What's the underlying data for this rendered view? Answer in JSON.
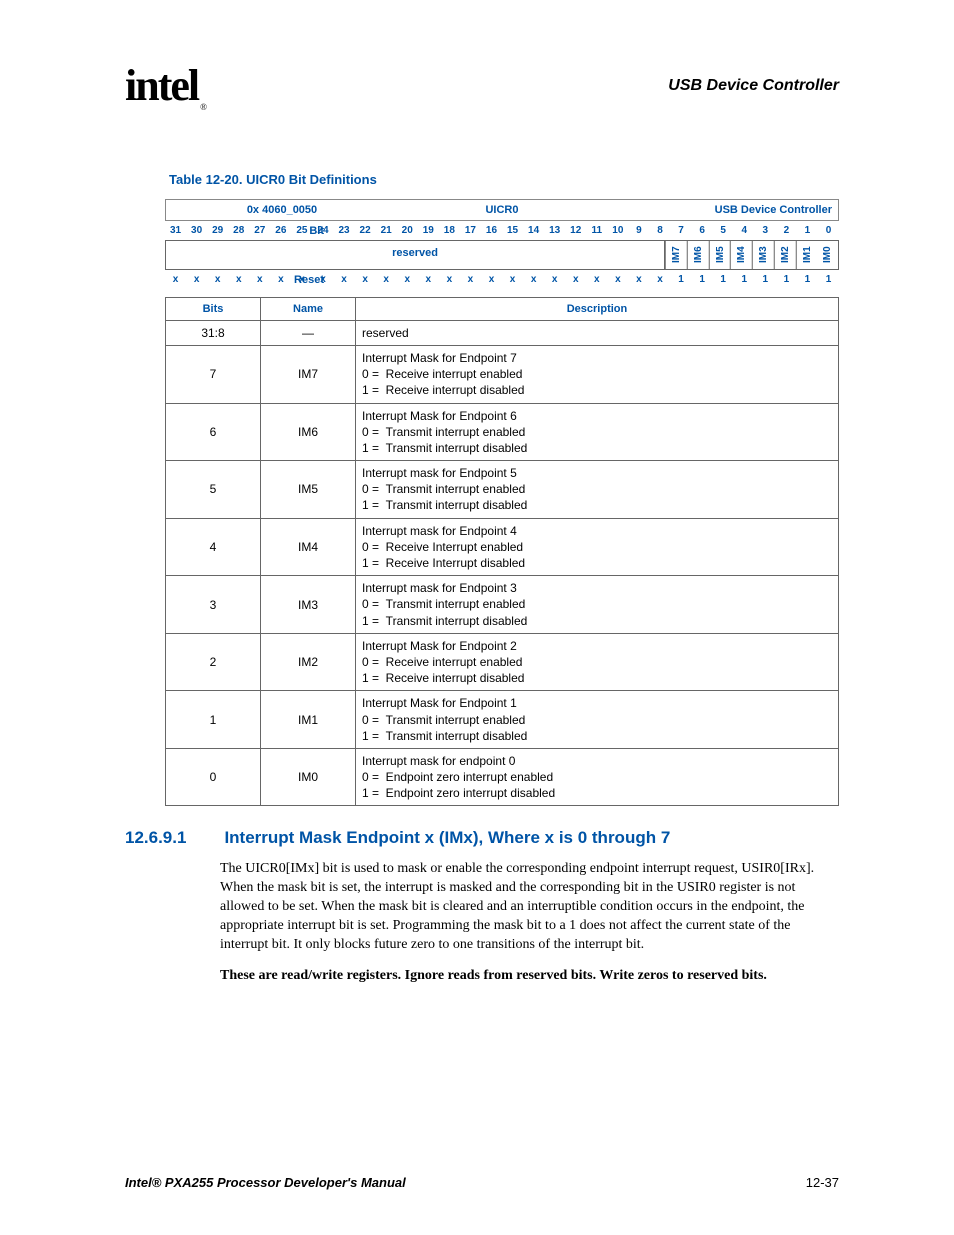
{
  "header": {
    "logo_text": "intel",
    "chapter": "USB Device Controller"
  },
  "table_caption": "Table 12-20. UICR0 Bit Definitions",
  "register": {
    "address": "0x 4060_0050",
    "name": "UICR0",
    "module": "USB Device Controller",
    "bit_label": "Bit",
    "reset_label": "Reset",
    "bits": [
      "31",
      "30",
      "29",
      "28",
      "27",
      "26",
      "25",
      "24",
      "23",
      "22",
      "21",
      "20",
      "19",
      "18",
      "17",
      "16",
      "15",
      "14",
      "13",
      "12",
      "11",
      "10",
      "9",
      "8",
      "7",
      "6",
      "5",
      "4",
      "3",
      "2",
      "1",
      "0"
    ],
    "reserved_label": "reserved",
    "field_names": [
      "IM7",
      "IM6",
      "IM5",
      "IM4",
      "IM3",
      "IM2",
      "IM1",
      "IM0"
    ],
    "reset_values": [
      "x",
      "x",
      "x",
      "x",
      "x",
      "x",
      "x",
      "x",
      "x",
      "x",
      "x",
      "x",
      "x",
      "x",
      "x",
      "x",
      "x",
      "x",
      "x",
      "x",
      "x",
      "x",
      "x",
      "x",
      "1",
      "1",
      "1",
      "1",
      "1",
      "1",
      "1",
      "1"
    ]
  },
  "def_table": {
    "headers": {
      "bits": "Bits",
      "name": "Name",
      "desc": "Description"
    },
    "rows": [
      {
        "bits": "31:8",
        "name": "—",
        "desc": "reserved"
      },
      {
        "bits": "7",
        "name": "IM7",
        "desc": "Interrupt Mask for Endpoint 7<br>0 =&nbsp;&nbsp;Receive interrupt enabled<br>1 =&nbsp;&nbsp;Receive interrupt disabled"
      },
      {
        "bits": "6",
        "name": "IM6",
        "desc": "Interrupt Mask for Endpoint 6<br>0 =&nbsp;&nbsp;Transmit interrupt enabled<br>1 =&nbsp;&nbsp;Transmit interrupt disabled"
      },
      {
        "bits": "5",
        "name": "IM5",
        "desc": "Interrupt mask for Endpoint 5<br>0 =&nbsp;&nbsp;Transmit interrupt enabled<br>1 =&nbsp;&nbsp;Transmit interrupt disabled"
      },
      {
        "bits": "4",
        "name": "IM4",
        "desc": "Interrupt mask for Endpoint 4<br>0 =&nbsp;&nbsp;Receive Interrupt enabled<br>1 =&nbsp;&nbsp;Receive Interrupt disabled"
      },
      {
        "bits": "3",
        "name": "IM3",
        "desc": "Interrupt mask for Endpoint 3<br>0 =&nbsp;&nbsp;Transmit interrupt enabled<br>1 =&nbsp;&nbsp;Transmit interrupt disabled"
      },
      {
        "bits": "2",
        "name": "IM2",
        "desc": "Interrupt Mask for Endpoint 2<br>0 =&nbsp;&nbsp;Receive interrupt enabled<br>1 =&nbsp;&nbsp;Receive interrupt disabled"
      },
      {
        "bits": "1",
        "name": "IM1",
        "desc": "Interrupt Mask for Endpoint 1<br>0 =&nbsp;&nbsp;Transmit interrupt enabled<br>1 =&nbsp;&nbsp;Transmit interrupt disabled"
      },
      {
        "bits": "0",
        "name": "IM0",
        "desc": "Interrupt mask for endpoint 0<br>0 =&nbsp;&nbsp;Endpoint zero interrupt enabled<br>1 =&nbsp;&nbsp;Endpoint zero interrupt disabled"
      }
    ]
  },
  "section": {
    "number": "12.6.9.1",
    "title": "Interrupt Mask Endpoint x (IMx), Where x is 0 through 7",
    "paragraph": "The UICR0[IMx] bit is used to mask or enable the corresponding endpoint interrupt request, USIR0[IRx]. When the mask bit is set, the interrupt is masked and the corresponding bit in the USIR0 register is not allowed to be set. When the mask bit is cleared and an interruptible condition occurs in the endpoint, the appropriate interrupt bit is set. Programming the mask bit to a 1 does not affect the current state of the interrupt bit. It only blocks future zero to one transitions of the interrupt bit.",
    "note": "These are read/write registers. Ignore reads from reserved bits. Write zeros to reserved bits."
  },
  "footer": {
    "manual": "Intel® PXA255 Processor Developer's Manual",
    "page": "12-37"
  },
  "colors": {
    "accent": "#0054a6",
    "border": "#666666",
    "text": "#000000",
    "background": "#ffffff"
  },
  "typography": {
    "body_font": "Times New Roman",
    "ui_font": "Arial",
    "title_size_pt": 13,
    "body_size_pt": 11
  }
}
